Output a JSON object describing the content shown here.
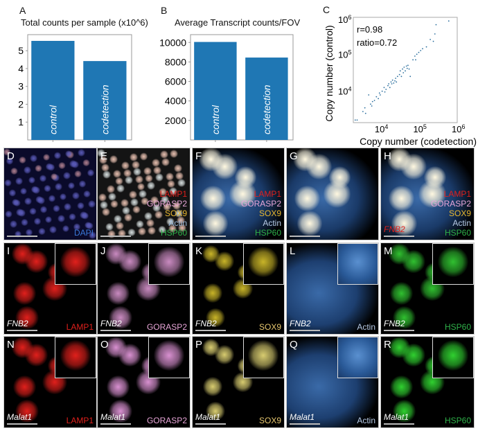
{
  "chart_data": [
    {
      "type": "bar",
      "panel": "A",
      "title": "Total counts per sample (x10^6)",
      "title_main": "Total counts per sample (x10",
      "title_sup": "6",
      "title_end": ")",
      "categories": [
        "control",
        "codetection"
      ],
      "values": [
        5.55,
        4.42
      ],
      "ylim": [
        0,
        5.9
      ],
      "yticks": [
        1,
        2,
        3,
        4,
        5
      ],
      "color": "#1f77b4",
      "xlabel": "",
      "ylabel": ""
    },
    {
      "type": "bar",
      "panel": "B",
      "title": "Average Transcript counts/FOV",
      "categories": [
        "control",
        "codetection"
      ],
      "values": [
        10050,
        8450
      ],
      "ylim": [
        0,
        10800
      ],
      "yticks": [
        2000,
        4000,
        6000,
        8000,
        10000
      ],
      "color": "#1f77b4",
      "xlabel": "",
      "ylabel": ""
    },
    {
      "type": "scatter",
      "panel": "C",
      "scale": "log10",
      "xlabel": "Copy number (codetection)",
      "ylabel": "Copy number (control)",
      "xlim_log10": [
        3.3,
        6
      ],
      "ylim_log10": [
        3.15,
        6
      ],
      "ticks_log10": [
        4,
        5,
        6
      ],
      "annotations": [
        "r=0.98",
        "ratio=0.72"
      ],
      "color": "#2c6f9e",
      "points_log10": [
        [
          3.35,
          3.22
        ],
        [
          3.4,
          3.22
        ],
        [
          3.55,
          3.45
        ],
        [
          3.6,
          3.55
        ],
        [
          3.62,
          3.4
        ],
        [
          3.7,
          3.9
        ],
        [
          3.75,
          3.65
        ],
        [
          3.78,
          3.6
        ],
        [
          3.8,
          3.72
        ],
        [
          3.85,
          3.75
        ],
        [
          3.9,
          3.85
        ],
        [
          3.95,
          3.8
        ],
        [
          3.98,
          3.95
        ],
        [
          4.0,
          3.9
        ],
        [
          4.05,
          4.0
        ],
        [
          4.1,
          4.1
        ],
        [
          4.12,
          3.98
        ],
        [
          4.15,
          4.05
        ],
        [
          4.2,
          4.15
        ],
        [
          4.22,
          4.2
        ],
        [
          4.25,
          4.1
        ],
        [
          4.28,
          4.25
        ],
        [
          4.3,
          4.2
        ],
        [
          4.32,
          4.3
        ],
        [
          4.35,
          4.22
        ],
        [
          4.38,
          4.28
        ],
        [
          4.4,
          4.35
        ],
        [
          4.42,
          4.25
        ],
        [
          4.45,
          4.4
        ],
        [
          4.5,
          4.45
        ],
        [
          4.52,
          4.55
        ],
        [
          4.55,
          4.4
        ],
        [
          4.58,
          4.6
        ],
        [
          4.6,
          4.5
        ],
        [
          4.62,
          4.65
        ],
        [
          4.65,
          4.55
        ],
        [
          4.68,
          4.68
        ],
        [
          4.7,
          4.62
        ],
        [
          4.72,
          4.7
        ],
        [
          4.75,
          4.6
        ],
        [
          4.78,
          4.4
        ],
        [
          4.85,
          4.85
        ],
        [
          4.9,
          4.95
        ],
        [
          4.92,
          4.85
        ],
        [
          4.95,
          5.0
        ],
        [
          5.0,
          5.05
        ],
        [
          5.05,
          5.1
        ],
        [
          5.1,
          5.15
        ],
        [
          5.2,
          5.2
        ],
        [
          5.3,
          5.4
        ],
        [
          5.38,
          5.35
        ],
        [
          5.42,
          5.55
        ],
        [
          5.45,
          5.8
        ],
        [
          5.78,
          5.9
        ]
      ]
    }
  ],
  "panels": [
    {
      "letter": "D",
      "style": "dapi",
      "labels": [
        {
          "text": "DAPI",
          "color": "#3a78d8"
        }
      ]
    },
    {
      "letter": "E",
      "style": "merge_wide",
      "labels": [
        {
          "text": "LAMP1",
          "color": "#e0201c"
        },
        {
          "text": "GORASP2",
          "color": "#e8a6d8"
        },
        {
          "text": "SOX9",
          "color": "#e8b830"
        },
        {
          "text": "Actin",
          "color": "#9ab8d8"
        },
        {
          "text": "HSP60",
          "color": "#2fb24a"
        }
      ]
    },
    {
      "letter": "F",
      "style": "merge",
      "labels": [
        {
          "text": "LAMP1",
          "color": "#e0201c"
        },
        {
          "text": "GORASP2",
          "color": "#e8a6d8"
        },
        {
          "text": "SOX9",
          "color": "#e8b830"
        },
        {
          "text": "Actin",
          "color": "#b8cce8"
        },
        {
          "text": "HSP60",
          "color": "#2fb24a"
        }
      ]
    },
    {
      "letter": "G",
      "style": "merge",
      "labels": []
    },
    {
      "letter": "H",
      "style": "merge",
      "gene": "FNB2",
      "gene_color": "#e0201c",
      "labels": [
        {
          "text": "LAMP1",
          "color": "#e0201c"
        },
        {
          "text": "GORASP2",
          "color": "#e8a6d8"
        },
        {
          "text": "SOX9",
          "color": "#e8b830"
        },
        {
          "text": "Actin",
          "color": "#b8cce8"
        },
        {
          "text": "HSP60",
          "color": "#2fb24a"
        }
      ]
    },
    {
      "letter": "I",
      "style": "spot",
      "color": "#e0201c",
      "gene": "FNB2",
      "labels": [
        {
          "text": "LAMP1",
          "color": "#e0201c"
        }
      ]
    },
    {
      "letter": "J",
      "style": "spot",
      "color": "#c98ac0",
      "gene": "FNB2",
      "labels": [
        {
          "text": "GORASP2",
          "color": "#e8a6d8"
        }
      ]
    },
    {
      "letter": "K",
      "style": "nuc",
      "color": "#c8b428",
      "gene": "FNB2",
      "labels": [
        {
          "text": "SOX9",
          "color": "#e8c870"
        }
      ]
    },
    {
      "letter": "L",
      "style": "actin",
      "color": "#4a80c0",
      "gene": "FNB2",
      "labels": [
        {
          "text": "Actin",
          "color": "#b8cce8"
        }
      ]
    },
    {
      "letter": "M",
      "style": "spot",
      "color": "#30c030",
      "gene": "FNB2",
      "labels": [
        {
          "text": "HSP60",
          "color": "#2fb24a"
        }
      ]
    },
    {
      "letter": "N",
      "style": "spot",
      "color": "#e0201c",
      "gene": "Malat1",
      "labels": [
        {
          "text": "LAMP1",
          "color": "#e0201c"
        }
      ]
    },
    {
      "letter": "O",
      "style": "spot",
      "color": "#d890d0",
      "gene": "Malat1",
      "labels": [
        {
          "text": "GORASP2",
          "color": "#e8a6d8"
        }
      ]
    },
    {
      "letter": "P",
      "style": "nuc",
      "color": "#d8cc70",
      "gene": "Malat1",
      "labels": [
        {
          "text": "SOX9",
          "color": "#e8c870"
        }
      ]
    },
    {
      "letter": "Q",
      "style": "actin",
      "color": "#4a80c0",
      "gene": "Malat1",
      "labels": [
        {
          "text": "Actin",
          "color": "#b8cce8"
        }
      ]
    },
    {
      "letter": "R",
      "style": "spot",
      "color": "#30d030",
      "gene": "Malat1",
      "labels": [
        {
          "text": "HSP60",
          "color": "#2fb24a"
        }
      ]
    }
  ]
}
